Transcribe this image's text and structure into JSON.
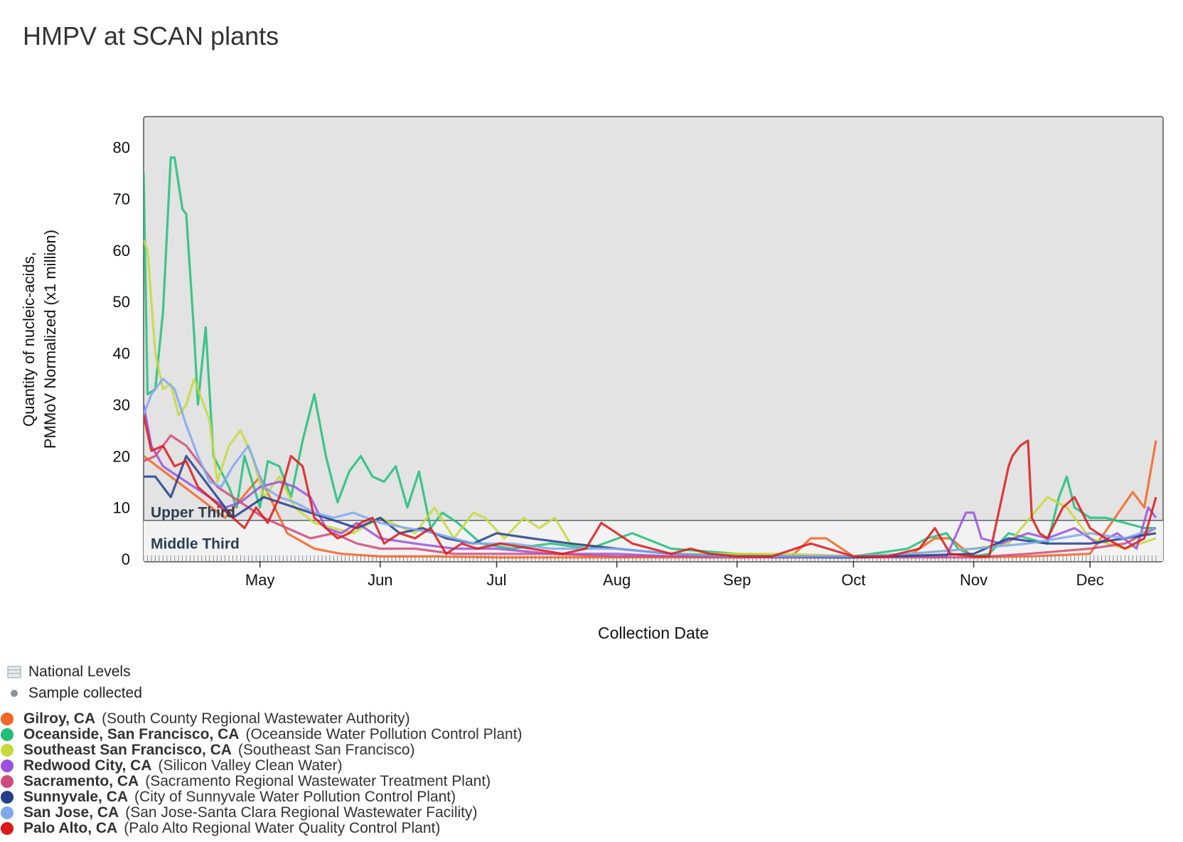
{
  "title": "HMPV at SCAN plants",
  "legend": {
    "national_levels": "National Levels",
    "sample_collected": "Sample collected"
  },
  "sites": [
    {
      "name": "Gilroy, CA",
      "facility": "(South County Regional Wastewater Authority)",
      "color": "#f26522"
    },
    {
      "name": "Oceanside, San Francisco, CA",
      "facility": "(Oceanside Water Pollution Control Plant)",
      "color": "#1fbf7a"
    },
    {
      "name": "Southeast San Francisco, CA",
      "facility": "(Southeast San Francisco)",
      "color": "#c6d93a"
    },
    {
      "name": "Redwood City, CA",
      "facility": "(Silicon Valley Clean Water)",
      "color": "#9b51e0"
    },
    {
      "name": "Sacramento, CA",
      "facility": "(Sacramento Regional Wastewater Treatment Plant)",
      "color": "#d04a7a"
    },
    {
      "name": "Sunnyvale, CA",
      "facility": "(City of Sunnyvale Water Pollution Control Plant)",
      "color": "#243e8c"
    },
    {
      "name": "San Jose, CA",
      "facility": "(San Jose-Santa Clara Regional Wastewater Facility)",
      "color": "#7fa8f0"
    },
    {
      "name": "Palo Alto, CA",
      "facility": "(Palo Alto Regional Water Quality Control Plant)",
      "color": "#dc1a1a"
    }
  ],
  "chart_data": {
    "type": "line",
    "title": "HMPV at SCAN plants",
    "xlabel": "Collection Date",
    "ylabel": "Quantity of nucleic-acids, PMMoV Normalized (x1 million)",
    "ylabel_lines": [
      "Quantity of nucleic-acids,",
      "PMMoV Normalized (x1 million)"
    ],
    "x_ticks": [
      "May",
      "Jun",
      "Jul",
      "Aug",
      "Sep",
      "Oct",
      "Nov",
      "Dec"
    ],
    "x_range": [
      "2024-04-01",
      "2024-12-18"
    ],
    "y_ticks": [
      0,
      10,
      20,
      30,
      40,
      50,
      60,
      70,
      80
    ],
    "ylim": [
      0,
      80
    ],
    "bands": [
      {
        "label": "Upper Third",
        "min": 7.5,
        "max": 80
      },
      {
        "label": "Middle Third",
        "min": 0,
        "max": 7.5
      }
    ],
    "series": [
      {
        "name": "Gilroy, CA",
        "color": "#f26522",
        "x": [
          "2024-04-01",
          "2024-04-08",
          "2024-04-15",
          "2024-04-22",
          "2024-05-01",
          "2024-05-08",
          "2024-05-15",
          "2024-05-22",
          "2024-06-01",
          "2024-06-15",
          "2024-07-01",
          "2024-07-15",
          "2024-08-01",
          "2024-08-15",
          "2024-09-01",
          "2024-09-15",
          "2024-09-20",
          "2024-09-24",
          "2024-10-01",
          "2024-10-15",
          "2024-10-22",
          "2024-10-26",
          "2024-11-01",
          "2024-11-15",
          "2024-12-01",
          "2024-12-12",
          "2024-12-15",
          "2024-12-18"
        ],
        "y": [
          20,
          16,
          12,
          8,
          16,
          5,
          2,
          1,
          0.5,
          0.5,
          0.3,
          0.3,
          0.3,
          0.3,
          0.3,
          0.5,
          4,
          4,
          0.5,
          0.5,
          4,
          4,
          0.3,
          0.5,
          1,
          13,
          10,
          23
        ]
      },
      {
        "name": "Oceanside, San Francisco, CA",
        "color": "#1fbf7a",
        "x": [
          "2024-04-01",
          "2024-04-02",
          "2024-04-04",
          "2024-04-06",
          "2024-04-08",
          "2024-04-09",
          "2024-04-11",
          "2024-04-12",
          "2024-04-14",
          "2024-04-15",
          "2024-04-17",
          "2024-04-19",
          "2024-04-23",
          "2024-04-25",
          "2024-04-27",
          "2024-05-01",
          "2024-05-03",
          "2024-05-06",
          "2024-05-09",
          "2024-05-12",
          "2024-05-15",
          "2024-05-18",
          "2024-05-21",
          "2024-05-24",
          "2024-05-27",
          "2024-05-30",
          "2024-06-02",
          "2024-06-05",
          "2024-06-08",
          "2024-06-11",
          "2024-06-14",
          "2024-06-17",
          "2024-06-21",
          "2024-06-27",
          "2024-07-05",
          "2024-07-15",
          "2024-07-25",
          "2024-08-05",
          "2024-08-15",
          "2024-09-01",
          "2024-09-15",
          "2024-10-01",
          "2024-10-15",
          "2024-10-20",
          "2024-10-25",
          "2024-10-28",
          "2024-11-01",
          "2024-11-05",
          "2024-11-10",
          "2024-11-15",
          "2024-11-20",
          "2024-11-23",
          "2024-11-25",
          "2024-11-27",
          "2024-12-01",
          "2024-12-05",
          "2024-12-10",
          "2024-12-15",
          "2024-12-18"
        ],
        "y": [
          75,
          32,
          33,
          48,
          78,
          78,
          68,
          67,
          44,
          30,
          45,
          20,
          14,
          10,
          20,
          10,
          19,
          18,
          12,
          23,
          32,
          20,
          11,
          17,
          20,
          16,
          15,
          18,
          10,
          17,
          6,
          9,
          7,
          3,
          2,
          3,
          2,
          5,
          2,
          1,
          0.5,
          0.5,
          2,
          4,
          5,
          2,
          0.5,
          1,
          5,
          4,
          3,
          12,
          16,
          10,
          8,
          8,
          7,
          6,
          6
        ]
      },
      {
        "name": "Southeast San Francisco, CA",
        "color": "#c6d93a",
        "x": [
          "2024-04-01",
          "2024-04-02",
          "2024-04-04",
          "2024-04-06",
          "2024-04-08",
          "2024-04-10",
          "2024-04-12",
          "2024-04-14",
          "2024-04-16",
          "2024-04-18",
          "2024-04-20",
          "2024-04-23",
          "2024-04-26",
          "2024-04-29",
          "2024-05-02",
          "2024-05-06",
          "2024-05-10",
          "2024-05-15",
          "2024-05-20",
          "2024-05-25",
          "2024-06-01",
          "2024-06-10",
          "2024-06-15",
          "2024-06-20",
          "2024-06-25",
          "2024-06-28",
          "2024-07-03",
          "2024-07-08",
          "2024-07-12",
          "2024-07-16",
          "2024-07-20",
          "2024-08-01",
          "2024-08-15",
          "2024-09-01",
          "2024-09-15",
          "2024-10-01",
          "2024-10-15",
          "2024-11-01",
          "2024-11-10",
          "2024-11-20",
          "2024-11-25",
          "2024-12-01",
          "2024-12-10",
          "2024-12-18"
        ],
        "y": [
          62,
          60,
          40,
          33,
          34,
          28,
          30,
          35,
          31,
          27,
          15,
          22,
          25,
          20,
          12,
          16,
          10,
          7,
          6,
          5,
          8,
          5,
          10,
          4,
          9,
          8,
          4,
          8,
          6,
          8,
          3,
          2,
          1,
          1,
          1,
          0.5,
          1,
          2,
          3,
          12,
          10,
          4,
          2,
          4
        ]
      },
      {
        "name": "Redwood City, CA",
        "color": "#9b51e0",
        "x": [
          "2024-04-01",
          "2024-04-03",
          "2024-04-06",
          "2024-04-10",
          "2024-04-14",
          "2024-04-18",
          "2024-04-22",
          "2024-04-26",
          "2024-05-01",
          "2024-05-06",
          "2024-05-10",
          "2024-05-14",
          "2024-05-18",
          "2024-05-22",
          "2024-05-26",
          "2024-06-01",
          "2024-06-10",
          "2024-06-20",
          "2024-07-01",
          "2024-07-15",
          "2024-08-01",
          "2024-08-15",
          "2024-09-01",
          "2024-09-15",
          "2024-10-01",
          "2024-10-15",
          "2024-10-25",
          "2024-10-30",
          "2024-11-01",
          "2024-11-03",
          "2024-11-08",
          "2024-11-15",
          "2024-11-20",
          "2024-11-27",
          "2024-12-03",
          "2024-12-08",
          "2024-12-13",
          "2024-12-16",
          "2024-12-18"
        ],
        "y": [
          30,
          22,
          18,
          16,
          14,
          12,
          10,
          11,
          14,
          15,
          14,
          12,
          6,
          5,
          7,
          4,
          3,
          2,
          2,
          1,
          1,
          0.5,
          0.5,
          0.5,
          0.5,
          0.5,
          0.5,
          9,
          9,
          4,
          3,
          5,
          4,
          6,
          3,
          5,
          2,
          10,
          8
        ]
      },
      {
        "name": "Sacramento, CA",
        "color": "#d04a7a",
        "x": [
          "2024-04-01",
          "2024-04-04",
          "2024-04-08",
          "2024-04-12",
          "2024-04-16",
          "2024-04-20",
          "2024-04-24",
          "2024-04-28",
          "2024-05-02",
          "2024-05-08",
          "2024-05-14",
          "2024-05-20",
          "2024-05-26",
          "2024-06-01",
          "2024-06-10",
          "2024-06-20",
          "2024-07-01",
          "2024-07-15",
          "2024-08-01",
          "2024-08-15",
          "2024-09-01",
          "2024-10-01",
          "2024-11-01",
          "2024-11-15",
          "2024-12-01",
          "2024-12-10",
          "2024-12-18"
        ],
        "y": [
          19,
          20,
          24,
          22,
          18,
          14,
          12,
          10,
          8,
          6,
          4,
          5,
          3,
          2,
          2,
          1,
          1,
          1,
          0.5,
          0.5,
          0.3,
          0.3,
          0.3,
          1,
          2,
          3,
          6
        ]
      },
      {
        "name": "Sunnyvale, CA",
        "color": "#243e8c",
        "x": [
          "2024-04-01",
          "2024-04-04",
          "2024-04-08",
          "2024-04-12",
          "2024-04-16",
          "2024-04-20",
          "2024-04-24",
          "2024-04-28",
          "2024-05-02",
          "2024-05-06",
          "2024-05-10",
          "2024-05-14",
          "2024-05-18",
          "2024-05-22",
          "2024-05-26",
          "2024-06-01",
          "2024-06-06",
          "2024-06-12",
          "2024-06-18",
          "2024-06-25",
          "2024-07-01",
          "2024-07-10",
          "2024-07-20",
          "2024-08-01",
          "2024-08-15",
          "2024-09-01",
          "2024-10-01",
          "2024-11-01",
          "2024-11-10",
          "2024-11-20",
          "2024-12-01",
          "2024-12-10",
          "2024-12-18"
        ],
        "y": [
          16,
          16,
          12,
          20,
          16,
          12,
          8,
          10,
          12,
          11,
          10,
          9,
          8,
          7,
          6,
          8,
          5,
          6,
          4,
          3,
          5,
          4,
          3,
          2,
          1,
          0.5,
          0.3,
          1,
          4,
          3,
          3,
          4,
          5
        ]
      },
      {
        "name": "San Jose, CA",
        "color": "#7fa8f0",
        "x": [
          "2024-04-01",
          "2024-04-03",
          "2024-04-06",
          "2024-04-09",
          "2024-04-12",
          "2024-04-15",
          "2024-04-18",
          "2024-04-21",
          "2024-04-24",
          "2024-04-28",
          "2024-05-02",
          "2024-05-06",
          "2024-05-10",
          "2024-05-15",
          "2024-05-20",
          "2024-05-25",
          "2024-06-01",
          "2024-06-08",
          "2024-06-15",
          "2024-06-25",
          "2024-07-05",
          "2024-07-15",
          "2024-08-01",
          "2024-08-15",
          "2024-09-01",
          "2024-09-15",
          "2024-10-01",
          "2024-10-15",
          "2024-11-01",
          "2024-11-15",
          "2024-12-01",
          "2024-12-10",
          "2024-12-18"
        ],
        "y": [
          28,
          32,
          35,
          33,
          26,
          20,
          15,
          14,
          18,
          22,
          14,
          12,
          11,
          9,
          8,
          9,
          7,
          6,
          5,
          3,
          3,
          2,
          2,
          1,
          0.5,
          0.5,
          0.5,
          1,
          2,
          3,
          5,
          4,
          6
        ]
      },
      {
        "name": "Palo Alto, CA",
        "color": "#dc1a1a",
        "x": [
          "2024-04-01",
          "2024-04-03",
          "2024-04-06",
          "2024-04-09",
          "2024-04-12",
          "2024-04-15",
          "2024-04-18",
          "2024-04-21",
          "2024-04-24",
          "2024-04-27",
          "2024-04-30",
          "2024-05-03",
          "2024-05-06",
          "2024-05-09",
          "2024-05-12",
          "2024-05-15",
          "2024-05-18",
          "2024-05-21",
          "2024-05-24",
          "2024-05-27",
          "2024-05-30",
          "2024-06-02",
          "2024-06-06",
          "2024-06-10",
          "2024-06-14",
          "2024-06-18",
          "2024-06-22",
          "2024-06-26",
          "2024-07-02",
          "2024-07-10",
          "2024-07-18",
          "2024-07-24",
          "2024-07-28",
          "2024-08-05",
          "2024-08-15",
          "2024-08-20",
          "2024-08-25",
          "2024-09-01",
          "2024-09-10",
          "2024-09-20",
          "2024-10-01",
          "2024-10-10",
          "2024-10-18",
          "2024-10-22",
          "2024-10-26",
          "2024-11-01",
          "2024-11-05",
          "2024-11-10",
          "2024-11-11",
          "2024-11-13",
          "2024-11-15",
          "2024-11-16",
          "2024-11-18",
          "2024-11-20",
          "2024-11-24",
          "2024-11-27",
          "2024-12-01",
          "2024-12-05",
          "2024-12-10",
          "2024-12-15",
          "2024-12-18"
        ],
        "y": [
          28,
          21,
          22,
          18,
          19,
          14,
          12,
          10,
          8,
          6,
          10,
          7,
          12,
          20,
          18,
          8,
          6,
          4,
          5,
          7,
          8,
          3,
          5,
          4,
          6,
          1,
          3,
          2,
          3,
          2,
          1,
          2,
          7,
          3,
          1,
          2,
          1,
          0.5,
          0.5,
          3,
          0.5,
          0.5,
          2,
          6,
          1,
          0.5,
          0.5,
          18,
          20,
          22,
          23,
          8,
          5,
          4,
          10,
          12,
          6,
          4,
          2,
          4,
          12
        ]
      }
    ]
  }
}
